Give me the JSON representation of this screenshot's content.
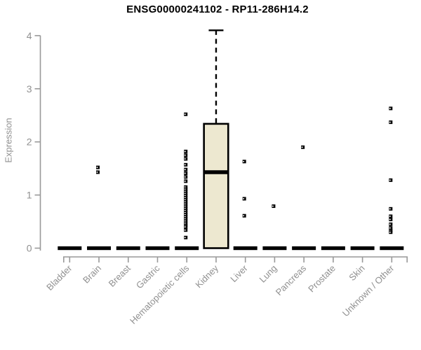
{
  "chart_data": {
    "type": "boxplot",
    "title": "ENSG00000241102 - RP11-286H14.2",
    "ylabel": "Expression",
    "xlabel": "",
    "ylim": [
      0,
      4
    ],
    "yticks": [
      0,
      1,
      2,
      3,
      4
    ],
    "grid": false,
    "legend": "none",
    "categories": [
      "Bladder",
      "Brain",
      "Breast",
      "Gastric",
      "Hematopoietic cells",
      "Kidney",
      "Liver",
      "Lung",
      "Pancreas",
      "Prostate",
      "Skin",
      "Unknown / Other"
    ],
    "boxes": [
      {
        "category": "Bladder",
        "q1": 0,
        "median": 0,
        "q3": 0,
        "whisker_low": 0,
        "whisker_high": 0
      },
      {
        "category": "Brain",
        "q1": 0,
        "median": 0,
        "q3": 0,
        "whisker_low": 0,
        "whisker_high": 0
      },
      {
        "category": "Breast",
        "q1": 0,
        "median": 0,
        "q3": 0,
        "whisker_low": 0,
        "whisker_high": 0
      },
      {
        "category": "Gastric",
        "q1": 0,
        "median": 0,
        "q3": 0,
        "whisker_low": 0,
        "whisker_high": 0
      },
      {
        "category": "Hematopoietic cells",
        "q1": 0,
        "median": 0,
        "q3": 0,
        "whisker_low": 0,
        "whisker_high": 0
      },
      {
        "category": "Kidney",
        "q1": 0,
        "median": 1.43,
        "q3": 2.34,
        "whisker_low": 0,
        "whisker_high": 4.1
      },
      {
        "category": "Liver",
        "q1": 0,
        "median": 0,
        "q3": 0,
        "whisker_low": 0,
        "whisker_high": 0
      },
      {
        "category": "Lung",
        "q1": 0,
        "median": 0,
        "q3": 0,
        "whisker_low": 0,
        "whisker_high": 0
      },
      {
        "category": "Pancreas",
        "q1": 0,
        "median": 0,
        "q3": 0,
        "whisker_low": 0,
        "whisker_high": 0
      },
      {
        "category": "Prostate",
        "q1": 0,
        "median": 0,
        "q3": 0,
        "whisker_low": 0,
        "whisker_high": 0
      },
      {
        "category": "Skin",
        "q1": 0,
        "median": 0,
        "q3": 0,
        "whisker_low": 0,
        "whisker_high": 0
      },
      {
        "category": "Unknown / Other",
        "q1": 0,
        "median": 0,
        "q3": 0,
        "whisker_low": 0,
        "whisker_high": 0
      }
    ],
    "outlier_points": {
      "Brain": [
        1.52,
        1.43
      ],
      "Hematopoietic cells": [
        2.52,
        1.82,
        1.75,
        1.68,
        1.57,
        1.48,
        1.41,
        1.34,
        1.26,
        1.15,
        1.11,
        1.07,
        1.03,
        0.99,
        0.95,
        0.91,
        0.87,
        0.83,
        0.79,
        0.75,
        0.71,
        0.67,
        0.63,
        0.59,
        0.55,
        0.51,
        0.47,
        0.43,
        0.4,
        0.34,
        0.2
      ],
      "Liver": [
        1.63,
        0.93,
        0.61
      ],
      "Lung": [
        0.79
      ],
      "Pancreas": [
        1.9
      ],
      "Unknown / Other": [
        2.63,
        2.37,
        1.28,
        0.74,
        0.6,
        0.54,
        0.45,
        0.38,
        0.33,
        0.3
      ]
    },
    "colors": {
      "background": "#ffffff",
      "box_fill": "#EDE8D0",
      "box_border": "#000000",
      "median": "#000000",
      "whisker": "#000000",
      "zero_bar": "#000000",
      "point": "#000000",
      "axis": "#999999",
      "tick_label": "#909090",
      "title": "#000000"
    }
  }
}
